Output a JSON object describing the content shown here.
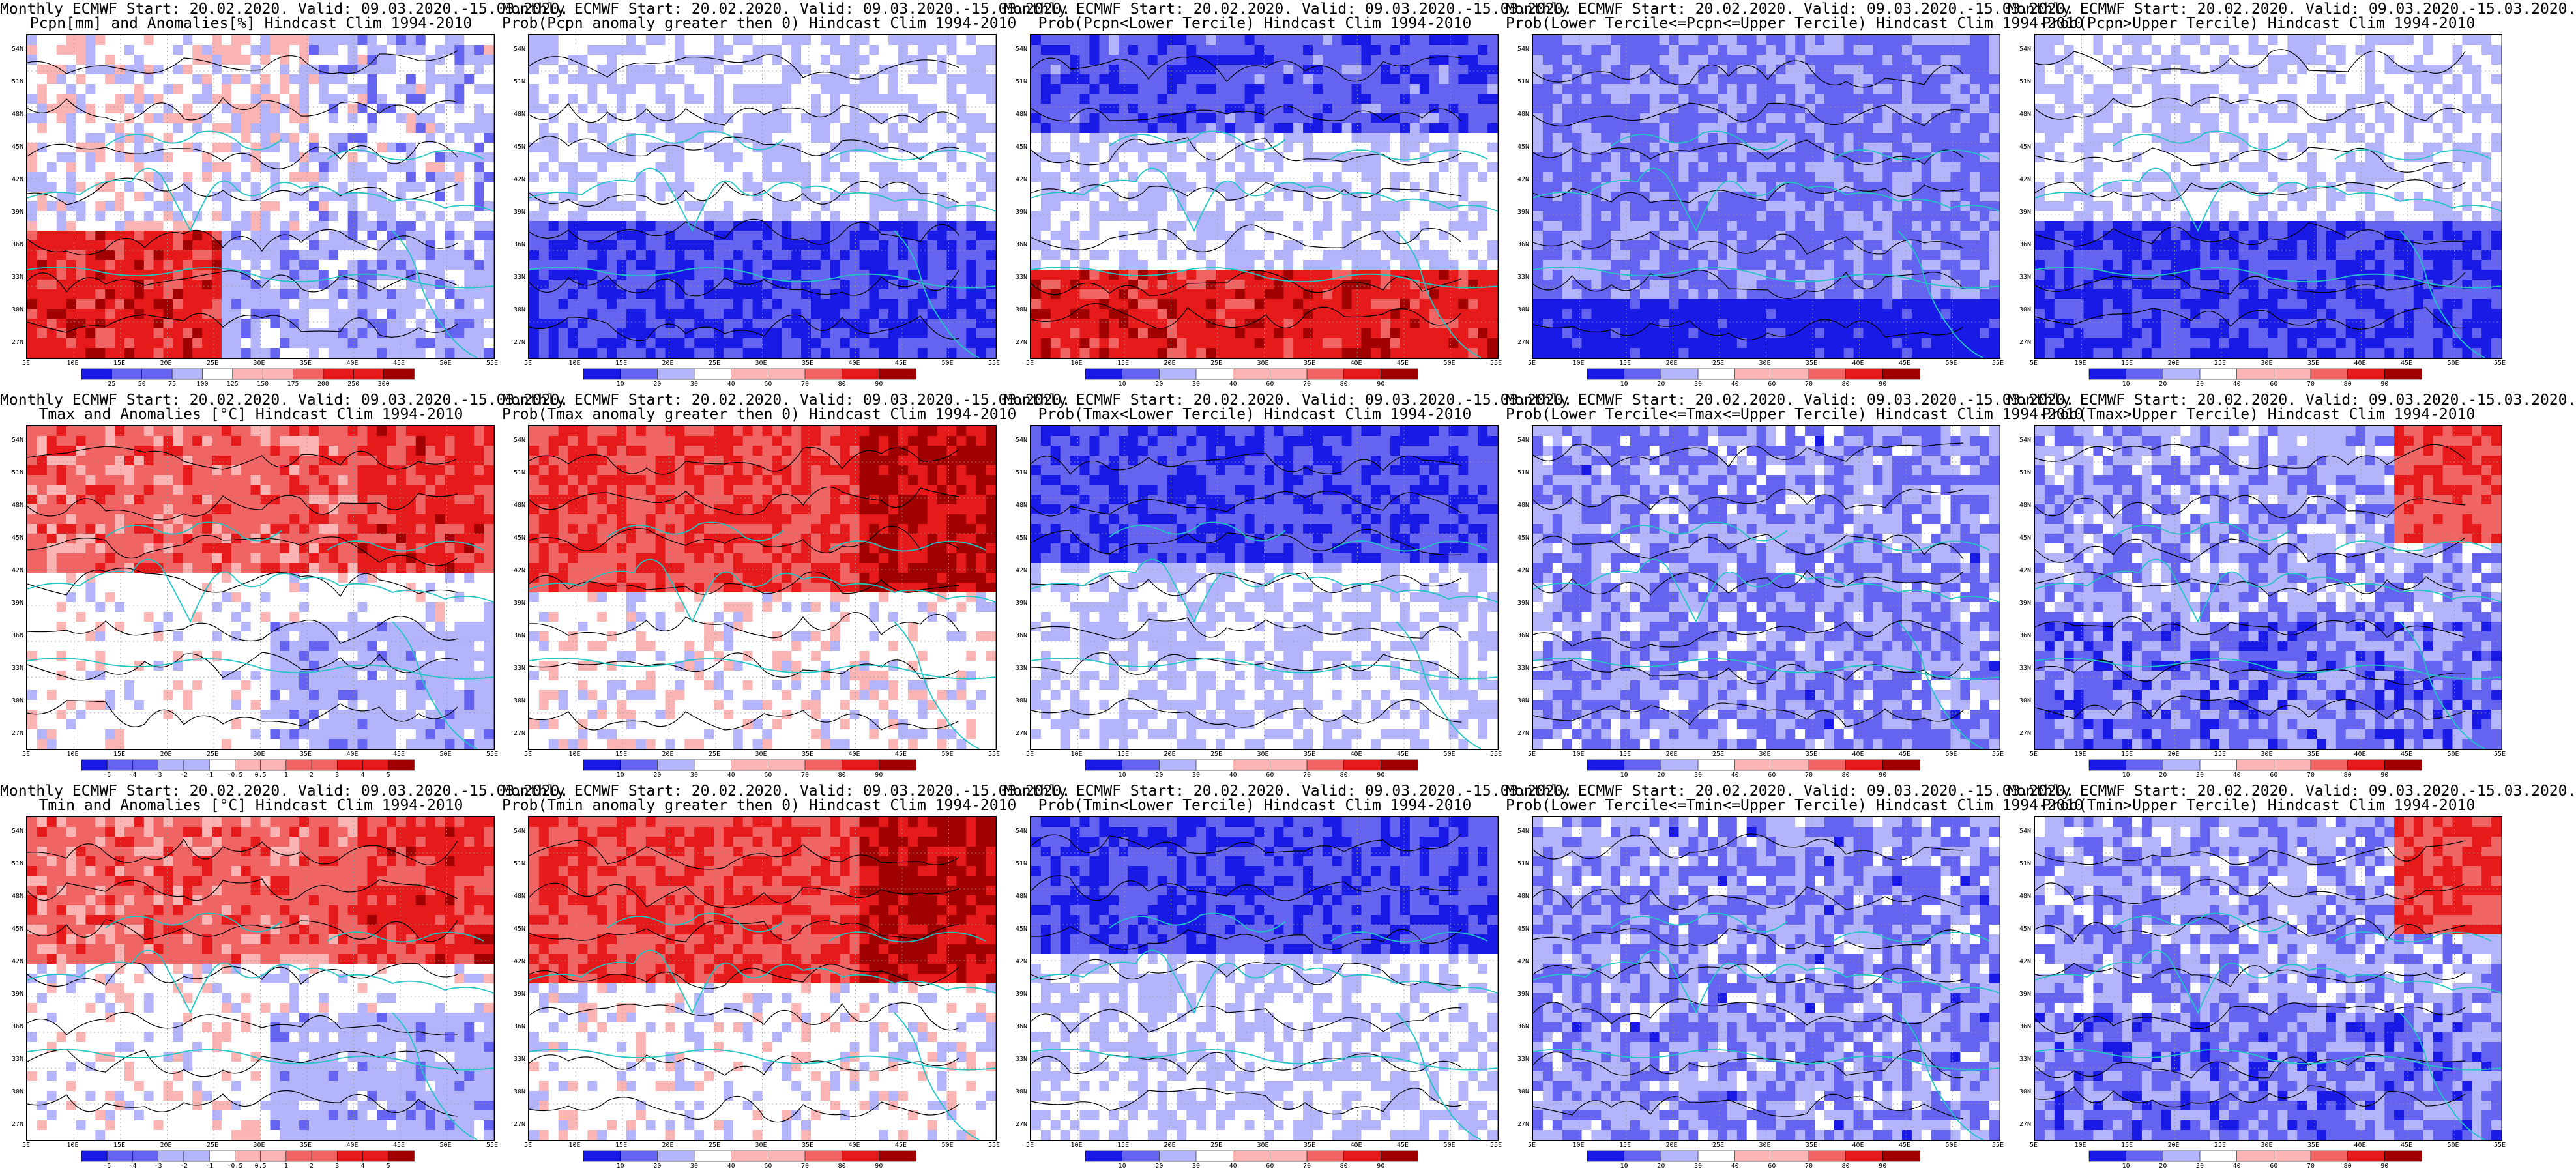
{
  "lat_labels": [
    "54N",
    "51N",
    "48N",
    "45N",
    "42N",
    "39N",
    "36N",
    "33N",
    "30N",
    "27N"
  ],
  "lon_labels": [
    "5E",
    "10E",
    "15E",
    "20E",
    "25E",
    "30E",
    "35E",
    "40E",
    "45E",
    "50E",
    "55E"
  ],
  "colors": {
    "coast": "#22c4c4",
    "contour": "#000000",
    "deep_blue": "#1a1ae6",
    "mid_blue": "#6464f0",
    "light_blue": "#b4b4fa",
    "white": "#ffffff",
    "light_red": "#fab4b4",
    "mid_red": "#f06464",
    "deep_red": "#e61a1a",
    "dark_red": "#a00000"
  },
  "colorbars": {
    "pcpn_anom": [
      "25",
      "50",
      "75",
      "100",
      "125",
      "150",
      "175",
      "200",
      "250",
      "300"
    ],
    "prob": [
      "10",
      "20",
      "30",
      "40",
      "60",
      "70",
      "80",
      "90"
    ],
    "temp_anom": [
      "-5",
      "-4",
      "-3",
      "-2",
      "-1",
      "-0.5",
      "0.5",
      "1",
      "2",
      "3",
      "4",
      "5"
    ]
  },
  "panels": [
    {
      "row": 0,
      "col": 0,
      "title1": "Monthly ECMWF Start: 20.02.2020. Valid: 09.03.2020.-15.03.2020.",
      "title2": "Pcpn[mm] and Anomalies[%] Hindcast Clim 1994-2010",
      "colorbar": "pcpn_anom",
      "pattern": "pcpn_anom"
    },
    {
      "row": 0,
      "col": 1,
      "title1": "Monthly ECMWF Start: 20.02.2020. Valid: 09.03.2020.-15.03.2020.",
      "title2": "Prob(Pcpn anomaly greater then 0) Hindcast Clim 1994-2010",
      "colorbar": "prob",
      "pattern": "blue_south"
    },
    {
      "row": 0,
      "col": 2,
      "title1": "Monthly ECMWF Start: 20.02.2020. Valid: 09.03.2020.-15.03.2020.",
      "title2": "Prob(Pcpn<Lower Tercile) Hindcast Clim 1994-2010",
      "colorbar": "prob",
      "pattern": "red_south"
    },
    {
      "row": 0,
      "col": 3,
      "title1": "Monthly ECMWF Start: 20.02.2020. Valid: 09.03.2020.-15.03.2020.",
      "title2": "Prob(Lower Tercile<=Pcpn<=Upper Tercile) Hindcast Clim 1994-2010",
      "colorbar": "prob",
      "pattern": "blue_all"
    },
    {
      "row": 0,
      "col": 4,
      "title1": "Monthly ECMWF Start: 20.02.2020. Valid: 09.03.2020.-15.03.2020.",
      "title2": "Prob(Pcpn>Upper Tercile) Hindcast Clim 1994-2010",
      "colorbar": "prob",
      "pattern": "blue_south"
    },
    {
      "row": 1,
      "col": 0,
      "title1": "Monthly ECMWF Start: 20.02.2020. Valid: 09.03.2020.-15.03.2020.",
      "title2": "Tmax and Anomalies [°C] Hindcast Clim 1994-2010",
      "colorbar": "temp_anom",
      "pattern": "red_north"
    },
    {
      "row": 1,
      "col": 1,
      "title1": "Monthly ECMWF Start: 20.02.2020. Valid: 09.03.2020.-15.03.2020.",
      "title2": "Prob(Tmax anomaly greater then 0) Hindcast Clim 1994-2010",
      "colorbar": "prob",
      "pattern": "red_north_strong"
    },
    {
      "row": 1,
      "col": 2,
      "title1": "Monthly ECMWF Start: 20.02.2020. Valid: 09.03.2020.-15.03.2020.",
      "title2": "Prob(Tmax<Lower Tercile) Hindcast Clim 1994-2010",
      "colorbar": "prob",
      "pattern": "blue_north"
    },
    {
      "row": 1,
      "col": 3,
      "title1": "Monthly ECMWF Start: 20.02.2020. Valid: 09.03.2020.-15.03.2020.",
      "title2": "Prob(Lower Tercile<=Tmax<=Upper Tercile) Hindcast Clim 1994-2010",
      "colorbar": "prob",
      "pattern": "blue_mix"
    },
    {
      "row": 1,
      "col": 4,
      "title1": "Monthly ECMWF Start: 20.02.2020. Valid: 09.03.2020.-15.03.2020.",
      "title2": "Prob(Tmax>Upper Tercile) Hindcast Clim 1994-2010",
      "colorbar": "prob",
      "pattern": "blue_mix_red"
    },
    {
      "row": 2,
      "col": 0,
      "title1": "Monthly ECMWF Start: 20.02.2020. Valid: 09.03.2020.-15.03.2020.",
      "title2": "Tmin and Anomalies [°C] Hindcast Clim 1994-2010",
      "colorbar": "temp_anom",
      "pattern": "red_north"
    },
    {
      "row": 2,
      "col": 1,
      "title1": "Monthly ECMWF Start: 20.02.2020. Valid: 09.03.2020.-15.03.2020.",
      "title2": "Prob(Tmin anomaly greater then 0) Hindcast Clim 1994-2010",
      "colorbar": "prob",
      "pattern": "red_north_strong"
    },
    {
      "row": 2,
      "col": 2,
      "title1": "Monthly ECMWF Start: 20.02.2020. Valid: 09.03.2020.-15.03.2020.",
      "title2": "Prob(Tmin<Lower Tercile) Hindcast Clim 1994-2010",
      "colorbar": "prob",
      "pattern": "blue_north"
    },
    {
      "row": 2,
      "col": 3,
      "title1": "Monthly ECMWF Start: 20.02.2020. Valid: 09.03.2020.-15.03.2020.",
      "title2": "Prob(Lower Tercile<=Tmin<=Upper Tercile) Hindcast Clim 1994-2010",
      "colorbar": "prob",
      "pattern": "blue_mix"
    },
    {
      "row": 2,
      "col": 4,
      "title1": "Monthly ECMWF Start: 20.02.2020. Valid: 09.03.2020.-15.03.2020.",
      "title2": "Prob(Tmin>Upper Tercile) Hindcast Clim 1994-2010",
      "colorbar": "prob",
      "pattern": "blue_mix_red"
    }
  ]
}
